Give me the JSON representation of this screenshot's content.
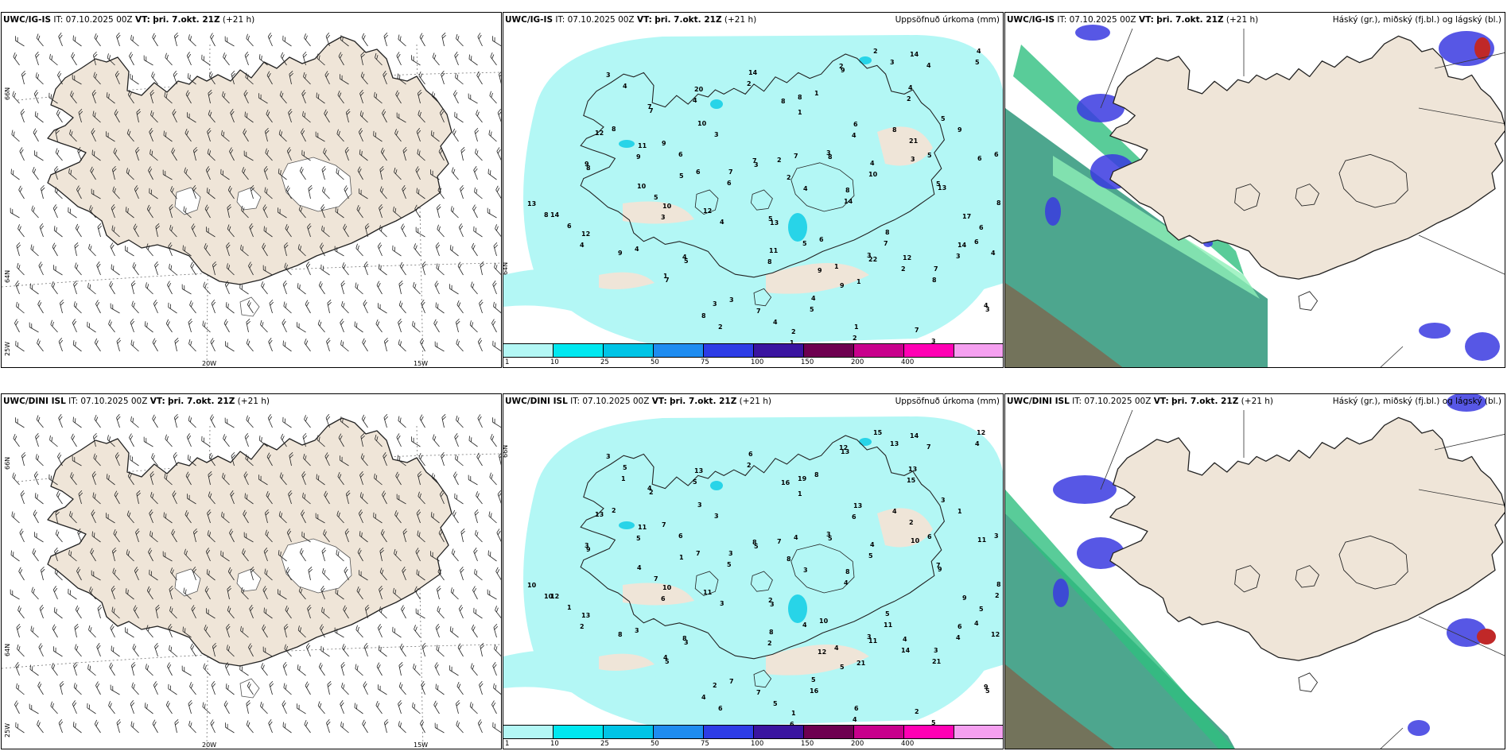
{
  "colors": {
    "land": "#efe5d8",
    "glacier": "#ffffff",
    "precip_light": "#b3f7f5",
    "precip_mid": "#28d4e8",
    "cloud_low": "#3a3ae0",
    "cloud_mid": "#2fbf7f",
    "cloud_high": "#c02828",
    "outline": "#222222"
  },
  "rows": [
    {
      "model": "UWC/IG-IS",
      "it_label": "IT:",
      "it_value": "07.10.2025 00Z",
      "vt_label": "VT:",
      "vt_value": "þri. 7.okt. 21Z",
      "lead": "(+21 h)",
      "precip_title": "Uppsöfnuð úrkoma (mm)",
      "cloud_title": "Háský (gr.), miðský (fj.bl.) og lágský (bl.)",
      "lat_labels": [
        "66N",
        "64N",
        "25W"
      ],
      "lon_labels": [
        "20W",
        "15W"
      ],
      "precip_lat_label": "64N",
      "precip_numbers": [
        "3",
        "7",
        "10",
        "14",
        "8",
        "8",
        "9",
        "2",
        "4",
        "6",
        "5",
        "3",
        "2",
        "8",
        "4",
        "3",
        "13",
        "17",
        "14",
        "12",
        "9",
        "4",
        "7",
        "8",
        "7",
        "9",
        "12",
        "14",
        "13",
        "8",
        "12",
        "11",
        "10",
        "12",
        "13",
        "5",
        "8",
        "7",
        "6",
        "3",
        "7",
        "1",
        "2",
        "3",
        "5",
        "10",
        "9",
        "7",
        "2",
        "8",
        "8",
        "5",
        "11",
        "9",
        "22",
        "20",
        "14",
        "4",
        "6",
        "8",
        "4",
        "7",
        "3",
        "2",
        "1",
        "1",
        "2",
        "3",
        "2",
        "4",
        "6",
        "7",
        "4",
        "14",
        "10",
        "5",
        "5",
        "6",
        "3",
        "2",
        "1",
        "5",
        "4",
        "2",
        "1",
        "4",
        "4",
        "6",
        "8",
        "9",
        "8",
        "9",
        "3",
        "4",
        "5",
        "6",
        "7",
        "8",
        "4",
        "4",
        "3",
        "2",
        "1",
        "3",
        "4",
        "5",
        "6",
        "6",
        "7",
        "3",
        "21",
        "9",
        "8",
        "1",
        "3",
        "4",
        "4",
        "5",
        "6"
      ]
    },
    {
      "model": "UWC/DINI ISL",
      "it_label": "IT:",
      "it_value": "07.10.2025 00Z",
      "vt_label": "VT:",
      "vt_value": "þri. 7.okt. 21Z",
      "lead": "(+21 h)",
      "precip_title": "Uppsöfnuð úrkoma (mm)",
      "cloud_title": "Háský (gr.), miðský (fj.bl.) og lágský (bl.)",
      "lat_labels": [
        "66N",
        "64N",
        "25W"
      ],
      "lon_labels": [
        "20W",
        "15W"
      ],
      "precip_lat_label": "66N",
      "precip_numbers": [
        "3",
        "2",
        "3",
        "6",
        "16",
        "19",
        "13",
        "15",
        "13",
        "13",
        "1",
        "5",
        "8",
        "8",
        "4",
        "10",
        "9",
        "9",
        "6",
        "4",
        "5",
        "5",
        "7",
        "4",
        "5",
        "8",
        "13",
        "12",
        "10",
        "9",
        "13",
        "11",
        "10",
        "11",
        "3",
        "4",
        "5",
        "3",
        "4",
        "5",
        "2",
        "6",
        "1",
        "2",
        "3",
        "4",
        "7",
        "3",
        "7",
        "5",
        "4",
        "3",
        "8",
        "12",
        "11",
        "13",
        "14",
        "12",
        "11",
        "8",
        "5",
        "4",
        "3",
        "2",
        "1",
        "8",
        "12",
        "13",
        "15",
        "6",
        "7",
        "8",
        "3",
        "4",
        "5",
        "6",
        "7",
        "5",
        "4",
        "14",
        "21",
        "16",
        "5",
        "6",
        "4",
        "3",
        "2",
        "1",
        "10",
        "3",
        "2",
        "5",
        "6",
        "3",
        "2",
        "10",
        "11",
        "21",
        "12",
        "9",
        "5",
        "4",
        "6",
        "7",
        "8",
        "7",
        "6",
        "5",
        "4",
        "3",
        "2",
        "1",
        "2",
        "4",
        "3",
        "5",
        "7",
        "4",
        "3",
        "2",
        "1"
      ]
    }
  ],
  "colorbar": {
    "ticks": [
      "1",
      "10",
      "25",
      "50",
      "75",
      "100",
      "150",
      "200",
      "400"
    ],
    "colors": [
      "#b3f7f5",
      "#00e8f0",
      "#00c4e6",
      "#1e8cf0",
      "#2d3ce6",
      "#3a14a0",
      "#6e0050",
      "#c8008c",
      "#ff00b4",
      "#f5a0f0"
    ]
  }
}
